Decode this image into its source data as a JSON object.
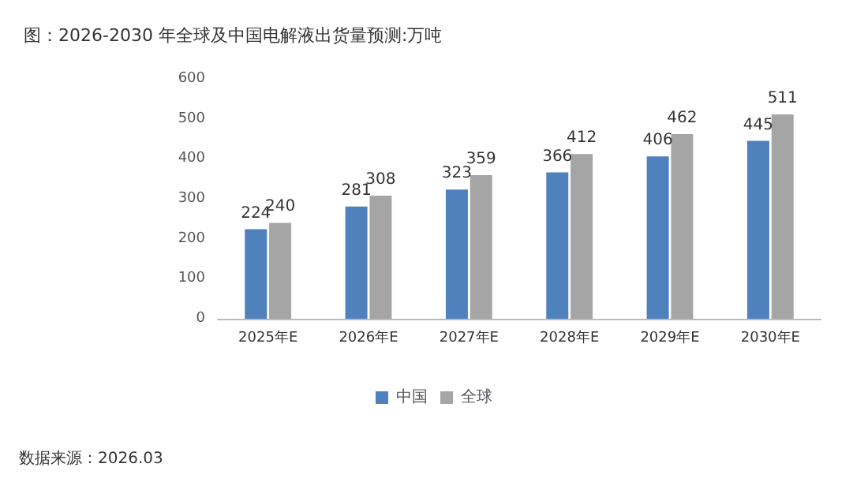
{
  "chart_data": {
    "type": "bar",
    "title": "图：2026-2030 年全球及中国电解液出货量预测:万吨",
    "categories": [
      "2025年E",
      "2026年E",
      "2027年E",
      "2028年E",
      "2029年E",
      "2030年E"
    ],
    "series": [
      {
        "name": "中国",
        "color": "#4f81bd",
        "values": [
          224,
          281,
          323,
          366,
          406,
          445
        ]
      },
      {
        "name": "全球",
        "color": "#a5a5a5",
        "values": [
          240,
          308,
          359,
          412,
          462,
          511
        ]
      }
    ],
    "ylim": [
      0,
      600
    ],
    "yticks": [
      0,
      100,
      200,
      300,
      400,
      500,
      600
    ],
    "grid": false,
    "legend": "bottom",
    "data_labels": true,
    "annotations": [
      "数据来源：2026.03"
    ]
  }
}
